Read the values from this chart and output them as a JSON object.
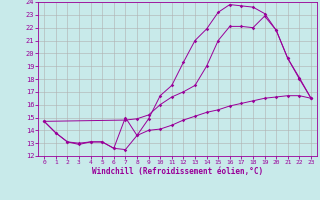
{
  "xlabel": "Windchill (Refroidissement éolien,°C)",
  "bg_color": "#c8eaea",
  "line_color": "#990099",
  "grid_color": "#b0b0b0",
  "xlim": [
    -0.5,
    23.5
  ],
  "ylim": [
    12,
    24
  ],
  "xticks": [
    0,
    1,
    2,
    3,
    4,
    5,
    6,
    7,
    8,
    9,
    10,
    11,
    12,
    13,
    14,
    15,
    16,
    17,
    18,
    19,
    20,
    21,
    22,
    23
  ],
  "yticks": [
    12,
    13,
    14,
    15,
    16,
    17,
    18,
    19,
    20,
    21,
    22,
    23,
    24
  ],
  "line1_x": [
    0,
    1,
    2,
    3,
    4,
    5,
    6,
    7,
    8,
    9,
    10,
    11,
    12,
    13,
    14,
    15,
    16,
    17,
    18,
    19,
    20,
    21,
    22,
    23
  ],
  "line1_y": [
    14.7,
    13.8,
    13.1,
    12.9,
    13.1,
    13.1,
    12.6,
    12.5,
    13.6,
    14.9,
    16.7,
    17.5,
    19.3,
    21.0,
    21.9,
    23.2,
    23.8,
    23.7,
    23.6,
    23.1,
    21.8,
    19.6,
    18.1,
    16.5
  ],
  "line2_x": [
    0,
    1,
    2,
    3,
    4,
    5,
    6,
    7,
    8,
    9,
    10,
    11,
    12,
    13,
    14,
    15,
    16,
    17,
    18,
    19,
    20,
    21,
    22,
    23
  ],
  "line2_y": [
    14.7,
    13.8,
    13.1,
    13.0,
    13.1,
    13.1,
    12.6,
    15.0,
    13.6,
    14.0,
    14.1,
    14.4,
    14.8,
    15.1,
    15.4,
    15.6,
    15.9,
    16.1,
    16.3,
    16.5,
    16.6,
    16.7,
    16.7,
    16.5
  ],
  "line3_x": [
    0,
    7,
    8,
    9,
    10,
    11,
    12,
    13,
    14,
    15,
    16,
    17,
    18,
    19,
    20,
    21,
    22,
    23
  ],
  "line3_y": [
    14.7,
    14.8,
    14.9,
    15.2,
    16.0,
    16.6,
    17.0,
    17.5,
    19.0,
    21.0,
    22.1,
    22.1,
    22.0,
    22.9,
    21.8,
    19.6,
    18.0,
    16.5
  ]
}
